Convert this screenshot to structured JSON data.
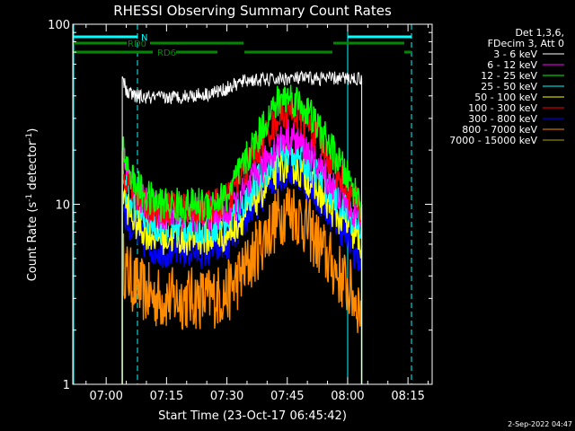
{
  "chart_data": {
    "type": "line",
    "title": "RHESSI Observing Summary Count Rates",
    "xlabel": "Start Time (23-Oct-17 06:45:42)",
    "ylabel_main": "Count Rate (s",
    "ylabel_sup1": "-1",
    "ylabel_mid": " detector",
    "ylabel_sup2": "-1",
    "ylabel_end": ")",
    "yscale": "log",
    "ylim": [
      1,
      100
    ],
    "xlim_minutes": [
      6.7,
      96.0
    ],
    "x_ticks": [
      {
        "minute": 15,
        "label": "07:00"
      },
      {
        "minute": 30,
        "label": "07:15"
      },
      {
        "minute": 45,
        "label": "07:30"
      },
      {
        "minute": 60,
        "label": "07:45"
      },
      {
        "minute": 75,
        "label": "08:00"
      },
      {
        "minute": 90,
        "label": "08:15"
      }
    ],
    "y_ticks": [
      {
        "value": 1,
        "label": "1"
      },
      {
        "value": 10,
        "label": "10"
      },
      {
        "value": 100,
        "label": "100"
      }
    ],
    "legend_header": [
      "Det 1,3,6,",
      "FDecim 3, Att 0"
    ],
    "legend_placement": "right",
    "series": [
      {
        "name": "3 - 6 keV",
        "color": "#ffffff",
        "points": [
          [
            19.0,
            52
          ],
          [
            20,
            42
          ],
          [
            22,
            40
          ],
          [
            25,
            39
          ],
          [
            30,
            39
          ],
          [
            35,
            40
          ],
          [
            40,
            41
          ],
          [
            44,
            43
          ],
          [
            46,
            45
          ],
          [
            50,
            49
          ],
          [
            55,
            49
          ],
          [
            60,
            50
          ],
          [
            65,
            50
          ],
          [
            70,
            50
          ],
          [
            75,
            50
          ],
          [
            78.5,
            50
          ]
        ]
      },
      {
        "name": "6 - 12 keV",
        "color": "#ff00ff",
        "points": [
          [
            19.0,
            20
          ],
          [
            20,
            15
          ],
          [
            22,
            12
          ],
          [
            25,
            10
          ],
          [
            28,
            9
          ],
          [
            35,
            8.8
          ],
          [
            40,
            8.8
          ],
          [
            45,
            9
          ],
          [
            50,
            12
          ],
          [
            55,
            18
          ],
          [
            58,
            22
          ],
          [
            60,
            24
          ],
          [
            62,
            23
          ],
          [
            65,
            20
          ],
          [
            70,
            14
          ],
          [
            75,
            10
          ],
          [
            78.5,
            8
          ]
        ]
      },
      {
        "name": "12 - 25 keV",
        "color": "#00ff00",
        "points": [
          [
            19.0,
            22
          ],
          [
            20,
            17
          ],
          [
            22,
            13
          ],
          [
            25,
            11
          ],
          [
            28,
            10
          ],
          [
            35,
            9.8
          ],
          [
            40,
            10
          ],
          [
            45,
            11
          ],
          [
            50,
            18
          ],
          [
            55,
            30
          ],
          [
            58,
            38
          ],
          [
            60,
            40
          ],
          [
            62,
            38
          ],
          [
            65,
            33
          ],
          [
            70,
            22
          ],
          [
            75,
            14
          ],
          [
            78.5,
            10
          ]
        ]
      },
      {
        "name": "25 - 50 keV",
        "color": "#00ffff",
        "points": [
          [
            19.0,
            15
          ],
          [
            20,
            12
          ],
          [
            22,
            10
          ],
          [
            25,
            8.5
          ],
          [
            28,
            7.6
          ],
          [
            35,
            7.5
          ],
          [
            40,
            7.6
          ],
          [
            45,
            8
          ],
          [
            50,
            11
          ],
          [
            55,
            16
          ],
          [
            58,
            19
          ],
          [
            60,
            20
          ],
          [
            62,
            19
          ],
          [
            65,
            17
          ],
          [
            70,
            12.5
          ],
          [
            75,
            9
          ],
          [
            78.5,
            7.5
          ]
        ]
      },
      {
        "name": "50 - 100 keV",
        "color": "#ffff00",
        "points": [
          [
            19.0,
            12
          ],
          [
            20,
            10
          ],
          [
            22,
            8
          ],
          [
            25,
            7
          ],
          [
            28,
            6.6
          ],
          [
            35,
            6.5
          ],
          [
            40,
            6.5
          ],
          [
            45,
            6.8
          ],
          [
            50,
            9
          ],
          [
            55,
            13
          ],
          [
            58,
            16
          ],
          [
            60,
            17
          ],
          [
            62,
            16
          ],
          [
            65,
            14
          ],
          [
            70,
            10
          ],
          [
            75,
            7.5
          ],
          [
            78.5,
            6
          ]
        ]
      },
      {
        "name": "100 - 300 keV",
        "color": "#ff0000",
        "points": [
          [
            19.0,
            18
          ],
          [
            20,
            14
          ],
          [
            22,
            11.5
          ],
          [
            25,
            10
          ],
          [
            28,
            9.5
          ],
          [
            35,
            9.5
          ],
          [
            40,
            9.5
          ],
          [
            45,
            10.5
          ],
          [
            50,
            16
          ],
          [
            55,
            25
          ],
          [
            58,
            31
          ],
          [
            60,
            33
          ],
          [
            62,
            32
          ],
          [
            65,
            28
          ],
          [
            70,
            19
          ],
          [
            75,
            12
          ],
          [
            78.5,
            9
          ]
        ]
      },
      {
        "name": "300 - 800 keV",
        "color": "#0000ff",
        "points": [
          [
            19.0,
            11
          ],
          [
            20,
            8.5
          ],
          [
            22,
            7
          ],
          [
            25,
            6
          ],
          [
            28,
            5.6
          ],
          [
            35,
            5.5
          ],
          [
            40,
            5.5
          ],
          [
            45,
            6
          ],
          [
            50,
            8.5
          ],
          [
            55,
            12.5
          ],
          [
            58,
            14.5
          ],
          [
            60,
            15.5
          ],
          [
            62,
            15
          ],
          [
            65,
            13
          ],
          [
            70,
            9.5
          ],
          [
            75,
            6.5
          ],
          [
            78.5,
            4.5
          ]
        ]
      },
      {
        "name": "800 - 7000 keV",
        "color": "#ff8c00",
        "points": [
          [
            19.0,
            5
          ],
          [
            20,
            4.2
          ],
          [
            22,
            3.6
          ],
          [
            25,
            3.2
          ],
          [
            28,
            3
          ],
          [
            35,
            3
          ],
          [
            40,
            3
          ],
          [
            45,
            3.2
          ],
          [
            50,
            4.5
          ],
          [
            55,
            7
          ],
          [
            58,
            8.5
          ],
          [
            60,
            9.5
          ],
          [
            62,
            9
          ],
          [
            65,
            7.5
          ],
          [
            70,
            5
          ],
          [
            75,
            3.5
          ],
          [
            78.5,
            2.6
          ]
        ]
      },
      {
        "name": "7000 - 15000 keV",
        "color": "#a6a600",
        "points": []
      }
    ],
    "state_bars": {
      "N_label": "N",
      "RD0_label": "RD0",
      "RD6_label": "RD6",
      "N_color": "#00ffff",
      "RD_color": "#008800"
    },
    "timestamp": "2-Sep-2022 04:47"
  }
}
